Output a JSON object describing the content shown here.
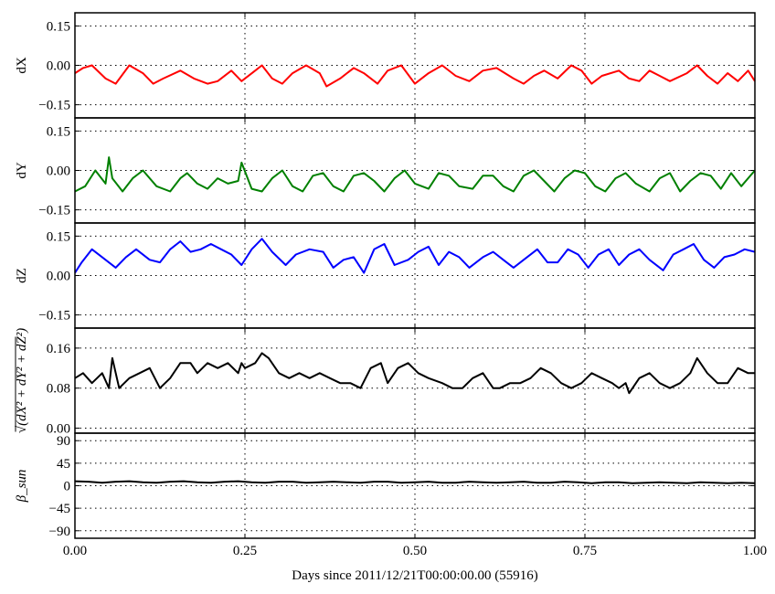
{
  "chart_data": {
    "type": "line",
    "xlabel": "Days since 2011/12/21T00:00:00.00 (55916)",
    "x_ticks": [
      "0.00",
      "0.25",
      "0.50",
      "0.75",
      "1.00"
    ],
    "xlim": [
      0,
      1
    ],
    "grid": true,
    "panels": [
      {
        "ylabel": "dX",
        "ylim": [
          -0.2,
          0.2
        ],
        "y_ticks": [
          0.15,
          0.0,
          -0.15
        ],
        "y_tick_labels": [
          "0.15",
          "0.00",
          "−0.15"
        ],
        "series": [
          {
            "color": "#ff0000",
            "x": [
              0.0,
              0.012,
              0.025,
              0.045,
              0.06,
              0.08,
              0.1,
              0.115,
              0.13,
              0.155,
              0.175,
              0.195,
              0.21,
              0.23,
              0.245,
              0.265,
              0.275,
              0.29,
              0.305,
              0.32,
              0.34,
              0.36,
              0.37,
              0.39,
              0.41,
              0.425,
              0.445,
              0.46,
              0.48,
              0.5,
              0.52,
              0.54,
              0.56,
              0.58,
              0.6,
              0.62,
              0.645,
              0.66,
              0.675,
              0.69,
              0.71,
              0.73,
              0.745,
              0.76,
              0.775,
              0.8,
              0.815,
              0.83,
              0.845,
              0.86,
              0.875,
              0.9,
              0.915,
              0.93,
              0.945,
              0.96,
              0.975,
              0.99,
              1.0
            ],
            "values": [
              -0.03,
              -0.01,
              0.0,
              -0.05,
              -0.07,
              0.0,
              -0.03,
              -0.07,
              -0.05,
              -0.02,
              -0.05,
              -0.07,
              -0.06,
              -0.02,
              -0.06,
              -0.02,
              0.0,
              -0.05,
              -0.07,
              -0.03,
              0.0,
              -0.03,
              -0.08,
              -0.05,
              -0.01,
              -0.03,
              -0.07,
              -0.02,
              0.0,
              -0.07,
              -0.03,
              0.0,
              -0.04,
              -0.06,
              -0.02,
              -0.01,
              -0.05,
              -0.07,
              -0.04,
              -0.02,
              -0.05,
              0.0,
              -0.02,
              -0.07,
              -0.04,
              -0.02,
              -0.05,
              -0.06,
              -0.02,
              -0.04,
              -0.06,
              -0.03,
              0.0,
              -0.04,
              -0.07,
              -0.03,
              -0.06,
              -0.02,
              -0.06
            ]
          }
        ]
      },
      {
        "ylabel": "dY",
        "ylim": [
          -0.2,
          0.2
        ],
        "y_ticks": [
          0.15,
          0.0,
          -0.15
        ],
        "y_tick_labels": [
          "0.15",
          "0.00",
          "−0.15"
        ],
        "series": [
          {
            "color": "#008000",
            "x": [
              0.0,
              0.015,
              0.03,
              0.045,
              0.05,
              0.055,
              0.07,
              0.085,
              0.1,
              0.12,
              0.14,
              0.155,
              0.165,
              0.18,
              0.195,
              0.21,
              0.225,
              0.24,
              0.245,
              0.26,
              0.275,
              0.29,
              0.305,
              0.32,
              0.335,
              0.35,
              0.365,
              0.38,
              0.395,
              0.41,
              0.425,
              0.44,
              0.455,
              0.47,
              0.485,
              0.5,
              0.52,
              0.535,
              0.55,
              0.565,
              0.585,
              0.6,
              0.615,
              0.63,
              0.645,
              0.66,
              0.675,
              0.69,
              0.705,
              0.72,
              0.735,
              0.75,
              0.765,
              0.78,
              0.795,
              0.81,
              0.825,
              0.845,
              0.86,
              0.875,
              0.89,
              0.905,
              0.92,
              0.935,
              0.95,
              0.965,
              0.98,
              1.0
            ],
            "values": [
              -0.08,
              -0.06,
              0.0,
              -0.05,
              0.05,
              -0.03,
              -0.08,
              -0.03,
              0.0,
              -0.06,
              -0.08,
              -0.03,
              -0.01,
              -0.05,
              -0.07,
              -0.03,
              -0.05,
              -0.04,
              0.03,
              -0.07,
              -0.08,
              -0.03,
              0.0,
              -0.06,
              -0.08,
              -0.02,
              -0.01,
              -0.06,
              -0.08,
              -0.02,
              -0.01,
              -0.04,
              -0.08,
              -0.03,
              0.0,
              -0.05,
              -0.07,
              -0.01,
              -0.02,
              -0.06,
              -0.07,
              -0.02,
              -0.02,
              -0.06,
              -0.08,
              -0.02,
              0.0,
              -0.04,
              -0.08,
              -0.03,
              0.0,
              -0.01,
              -0.06,
              -0.08,
              -0.03,
              -0.01,
              -0.05,
              -0.08,
              -0.03,
              -0.01,
              -0.08,
              -0.04,
              -0.01,
              -0.02,
              -0.07,
              -0.01,
              -0.06,
              0.0
            ]
          }
        ]
      },
      {
        "ylabel": "dZ",
        "ylim": [
          -0.2,
          0.2
        ],
        "y_ticks": [
          0.15,
          0.0,
          -0.15
        ],
        "y_tick_labels": [
          "0.15",
          "0.00",
          "−0.15"
        ],
        "series": [
          {
            "color": "#0000ff",
            "x": [
              0.0,
              0.01,
              0.025,
              0.045,
              0.06,
              0.075,
              0.09,
              0.11,
              0.125,
              0.14,
              0.155,
              0.17,
              0.185,
              0.2,
              0.215,
              0.23,
              0.245,
              0.26,
              0.275,
              0.29,
              0.31,
              0.325,
              0.345,
              0.365,
              0.38,
              0.395,
              0.41,
              0.425,
              0.44,
              0.455,
              0.47,
              0.49,
              0.505,
              0.52,
              0.535,
              0.55,
              0.565,
              0.58,
              0.6,
              0.615,
              0.63,
              0.645,
              0.66,
              0.68,
              0.695,
              0.71,
              0.725,
              0.74,
              0.755,
              0.77,
              0.785,
              0.8,
              0.815,
              0.83,
              0.845,
              0.865,
              0.88,
              0.895,
              0.91,
              0.925,
              0.94,
              0.955,
              0.97,
              0.985,
              1.0
            ],
            "values": [
              0.01,
              0.05,
              0.1,
              0.06,
              0.03,
              0.07,
              0.1,
              0.06,
              0.05,
              0.1,
              0.13,
              0.09,
              0.1,
              0.12,
              0.1,
              0.08,
              0.04,
              0.1,
              0.14,
              0.09,
              0.04,
              0.08,
              0.1,
              0.09,
              0.03,
              0.06,
              0.07,
              0.01,
              0.1,
              0.12,
              0.04,
              0.06,
              0.09,
              0.11,
              0.04,
              0.09,
              0.07,
              0.03,
              0.07,
              0.09,
              0.06,
              0.03,
              0.06,
              0.1,
              0.05,
              0.05,
              0.1,
              0.08,
              0.03,
              0.08,
              0.1,
              0.04,
              0.08,
              0.1,
              0.06,
              0.02,
              0.08,
              0.1,
              0.12,
              0.06,
              0.03,
              0.07,
              0.08,
              0.1,
              0.09
            ]
          }
        ]
      },
      {
        "ylabel": "√(dX² + dY² + dZ²)",
        "ylim": [
          -0.01,
          0.2
        ],
        "y_ticks": [
          0.16,
          0.08,
          0.0
        ],
        "y_tick_labels": [
          "0.16",
          "0.08",
          "0.00"
        ],
        "series": [
          {
            "color": "#000000",
            "x": [
              0.0,
              0.012,
              0.025,
              0.04,
              0.05,
              0.055,
              0.065,
              0.08,
              0.095,
              0.11,
              0.125,
              0.14,
              0.155,
              0.17,
              0.18,
              0.195,
              0.21,
              0.225,
              0.24,
              0.245,
              0.25,
              0.265,
              0.275,
              0.285,
              0.3,
              0.315,
              0.33,
              0.345,
              0.36,
              0.375,
              0.39,
              0.405,
              0.42,
              0.435,
              0.45,
              0.46,
              0.475,
              0.49,
              0.505,
              0.52,
              0.54,
              0.555,
              0.57,
              0.585,
              0.6,
              0.615,
              0.625,
              0.64,
              0.655,
              0.67,
              0.685,
              0.7,
              0.715,
              0.73,
              0.745,
              0.76,
              0.775,
              0.79,
              0.8,
              0.81,
              0.815,
              0.83,
              0.845,
              0.86,
              0.875,
              0.89,
              0.905,
              0.915,
              0.93,
              0.945,
              0.96,
              0.975,
              0.99,
              1.0
            ],
            "values": [
              0.1,
              0.11,
              0.09,
              0.11,
              0.08,
              0.14,
              0.08,
              0.1,
              0.11,
              0.12,
              0.08,
              0.1,
              0.13,
              0.13,
              0.11,
              0.13,
              0.12,
              0.13,
              0.11,
              0.13,
              0.12,
              0.13,
              0.15,
              0.14,
              0.11,
              0.1,
              0.11,
              0.1,
              0.11,
              0.1,
              0.09,
              0.09,
              0.08,
              0.12,
              0.13,
              0.09,
              0.12,
              0.13,
              0.11,
              0.1,
              0.09,
              0.08,
              0.08,
              0.1,
              0.11,
              0.08,
              0.08,
              0.09,
              0.09,
              0.1,
              0.12,
              0.11,
              0.09,
              0.08,
              0.09,
              0.11,
              0.1,
              0.09,
              0.08,
              0.09,
              0.07,
              0.1,
              0.11,
              0.09,
              0.08,
              0.09,
              0.11,
              0.14,
              0.11,
              0.09,
              0.09,
              0.12,
              0.11,
              0.11
            ]
          }
        ]
      },
      {
        "ylabel": "β_sun",
        "ylim": [
          -105,
          105
        ],
        "y_ticks": [
          90,
          45,
          0,
          -45,
          -90
        ],
        "y_tick_labels": [
          "90",
          "45",
          "0",
          "−45",
          "−90"
        ],
        "series": [
          {
            "color": "#000000",
            "x": [
              0.0,
              0.02,
              0.04,
              0.06,
              0.08,
              0.1,
              0.12,
              0.14,
              0.16,
              0.18,
              0.2,
              0.22,
              0.24,
              0.26,
              0.28,
              0.3,
              0.32,
              0.34,
              0.36,
              0.38,
              0.4,
              0.42,
              0.44,
              0.46,
              0.48,
              0.5,
              0.52,
              0.54,
              0.56,
              0.58,
              0.6,
              0.62,
              0.64,
              0.66,
              0.68,
              0.7,
              0.72,
              0.74,
              0.76,
              0.78,
              0.8,
              0.82,
              0.84,
              0.86,
              0.88,
              0.9,
              0.92,
              0.94,
              0.96,
              0.98,
              1.0
            ],
            "values": [
              9,
              8,
              6,
              8,
              9,
              7,
              6,
              8,
              9,
              7,
              6,
              8,
              9,
              7,
              6,
              8,
              8,
              6,
              7,
              8,
              7,
              6,
              8,
              8,
              6,
              7,
              8,
              6,
              6,
              8,
              7,
              6,
              7,
              8,
              6,
              6,
              8,
              7,
              5,
              7,
              7,
              5,
              6,
              7,
              6,
              5,
              7,
              6,
              5,
              6,
              5
            ]
          }
        ]
      }
    ]
  }
}
